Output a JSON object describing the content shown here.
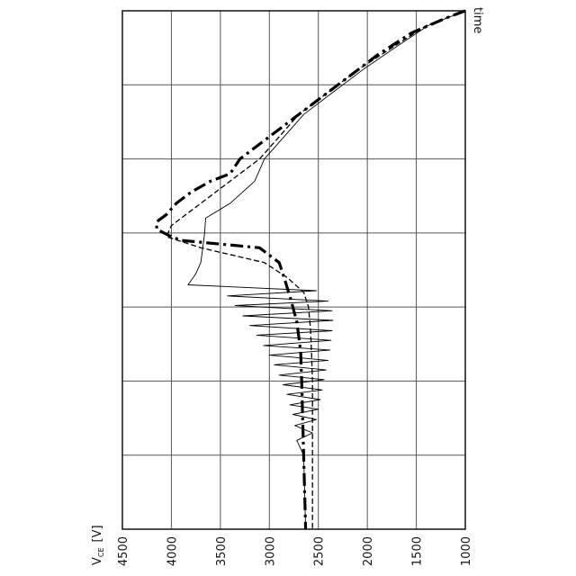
{
  "chart_data": {
    "type": "line",
    "title": "",
    "orientation": "rotated-90-cw",
    "xlabel": "time",
    "ylabel": {
      "main": "V",
      "sub": "CE",
      "unit": "[V]"
    },
    "ylim": [
      1000,
      4500
    ],
    "y_ticks": [
      "1000",
      "1500",
      "2000",
      "2500",
      "3000",
      "3500",
      "4000",
      "4500"
    ],
    "x_grid_divisions": 7,
    "xlim": [
      0,
      7
    ],
    "grid": true,
    "legend": "none",
    "series": [
      {
        "style": "dash-dot-thick",
        "x": [
          0,
          0.1,
          0.3,
          0.6,
          0.9,
          1.2,
          1.5,
          1.8,
          2.0,
          2.2,
          2.3,
          2.45,
          2.6,
          2.75,
          2.85,
          2.95,
          3.05,
          3.1,
          3.2,
          3.4,
          3.6,
          3.9,
          4.2,
          4.6,
          5.0,
          5.5,
          6.0,
          6.5,
          7.0
        ],
        "y": [
          1000,
          1200,
          1550,
          1900,
          2200,
          2500,
          2800,
          3100,
          3300,
          3400,
          3600,
          3800,
          3950,
          4050,
          4150,
          4150,
          4000,
          3900,
          3100,
          2900,
          2850,
          2780,
          2720,
          2680,
          2670,
          2660,
          2650,
          2640,
          2630
        ]
      },
      {
        "style": "dashed",
        "x": [
          0,
          0.2,
          0.5,
          0.8,
          1.1,
          1.4,
          1.7,
          2.0,
          2.2,
          2.5,
          2.7,
          2.9,
          3.05,
          3.2,
          3.4,
          3.6,
          3.8,
          4.0,
          4.3,
          4.6,
          5.0,
          5.5,
          6.0,
          6.5,
          7.0
        ],
        "y": [
          1000,
          1400,
          1750,
          2100,
          2400,
          2700,
          2900,
          3100,
          3300,
          3600,
          3800,
          4000,
          4050,
          3700,
          3050,
          2820,
          2650,
          2600,
          2580,
          2570,
          2560,
          2560,
          2560,
          2560,
          2560
        ]
      },
      {
        "style": "solid-thin",
        "x": [
          0,
          0.2,
          0.5,
          0.8,
          1.1,
          1.4,
          1.7,
          2.0,
          2.3,
          2.6,
          2.8,
          3.0,
          3.2,
          3.4,
          3.55,
          3.7,
          3.78,
          3.85,
          3.92,
          3.98,
          4.05,
          4.12,
          4.18,
          4.25,
          4.32,
          4.38,
          4.45,
          4.52,
          4.58,
          4.65,
          4.72,
          4.78,
          4.85,
          4.92,
          4.98,
          5.05,
          5.12,
          5.18,
          5.25,
          5.32,
          5.38,
          5.45,
          5.52,
          5.6,
          5.7,
          5.8,
          6.0,
          6.5,
          7.0
        ],
        "y": [
          1000,
          1380,
          1720,
          2050,
          2350,
          2650,
          2850,
          3050,
          3150,
          3400,
          3650,
          3660,
          3680,
          3700,
          3750,
          3830,
          2520,
          3430,
          2400,
          3350,
          2360,
          3270,
          2350,
          3200,
          2360,
          3130,
          2370,
          3060,
          2380,
          3000,
          2400,
          2950,
          2420,
          2900,
          2440,
          2860,
          2460,
          2820,
          2480,
          2790,
          2500,
          2760,
          2520,
          2740,
          2560,
          2720,
          2650,
          2640,
          2630
        ]
      }
    ]
  }
}
